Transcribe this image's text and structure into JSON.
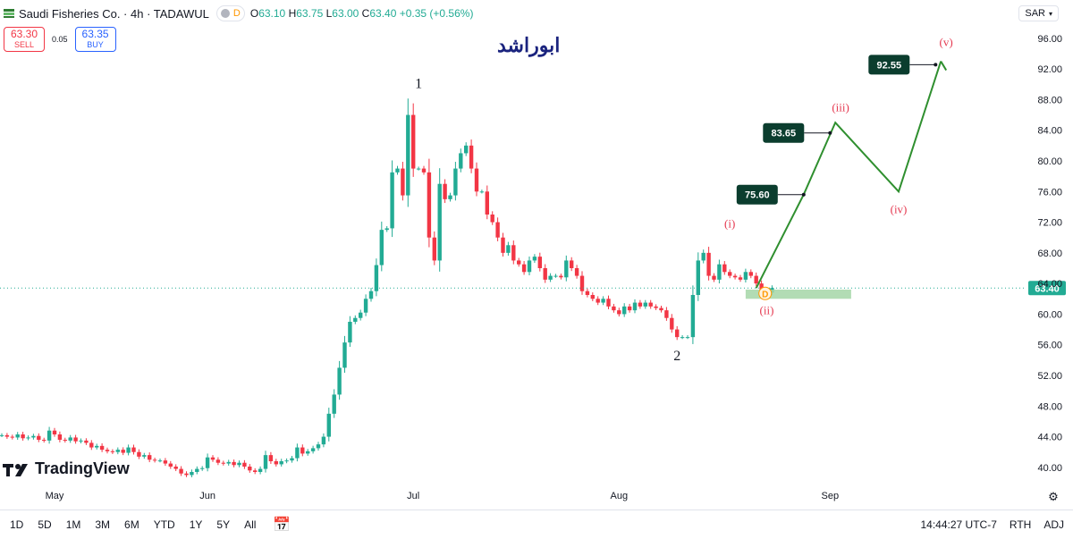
{
  "header": {
    "symbol": "Saudi Fisheries Co. · 4h · TADAWUL",
    "d_label": "D",
    "open_label": "O",
    "open": "63.10",
    "high_label": "H",
    "high": "63.75",
    "low_label": "L",
    "low": "63.00",
    "close_label": "C",
    "close": "63.40",
    "change": "+0.35 (+0.56%)"
  },
  "trade": {
    "sell_price": "63.30",
    "sell_label": "SELL",
    "spread": "0.05",
    "buy_price": "63.35",
    "buy_label": "BUY"
  },
  "currency": "SAR",
  "annotation_title": "ابوراشد",
  "brand": "TradingView",
  "bottom_bar": {
    "timeframes": [
      "1D",
      "5D",
      "1M",
      "3M",
      "6M",
      "YTD",
      "1Y",
      "5Y",
      "All"
    ],
    "time": "14:44:27 UTC-7",
    "session": "RTH",
    "adj": "ADJ"
  },
  "colors": {
    "up": "#22ab94",
    "down": "#f23645",
    "wave": "#2f8f2f",
    "label_bg": "#0b3d2e",
    "target_zone": "#a5d6a7"
  },
  "chart_data": {
    "type": "candlestick",
    "y_axis": {
      "min": 38,
      "max": 97.5,
      "ticks": [
        40,
        44,
        48,
        52,
        56,
        60,
        64,
        68,
        72,
        76,
        80,
        84,
        88,
        92,
        96
      ],
      "labels": [
        "40.00",
        "44.00",
        "48.00",
        "52.00",
        "56.00",
        "60.00",
        "64.00",
        "68.00",
        "72.00",
        "76.00",
        "80.00",
        "84.00",
        "88.00",
        "92.00",
        "96.00"
      ]
    },
    "x_axis": {
      "ticks": [
        {
          "label": "May",
          "i": 10
        },
        {
          "label": "Jun",
          "i": 39
        },
        {
          "label": "Jul",
          "i": 78
        },
        {
          "label": "Aug",
          "i": 117
        },
        {
          "label": "Sep",
          "i": 157
        }
      ]
    },
    "last_price": {
      "value": 63.4,
      "label": "63.40"
    },
    "closes": [
      44.2,
      44.0,
      43.9,
      44.3,
      43.8,
      43.9,
      44.1,
      43.6,
      43.5,
      44.8,
      44.3,
      43.6,
      43.5,
      43.9,
      43.4,
      43.5,
      43.2,
      42.6,
      42.8,
      42.3,
      42.1,
      42.0,
      42.3,
      41.9,
      42.6,
      42.0,
      41.4,
      41.6,
      41.0,
      40.9,
      40.9,
      40.5,
      40.1,
      39.8,
      39.2,
      39.0,
      39.4,
      39.8,
      39.9,
      41.3,
      41.0,
      40.6,
      40.5,
      40.7,
      40.3,
      40.6,
      40.1,
      39.6,
      39.4,
      39.8,
      41.6,
      40.8,
      40.4,
      40.8,
      40.9,
      41.2,
      42.6,
      41.8,
      42.1,
      42.5,
      43.0,
      44.0,
      47.0,
      49.5,
      53.0,
      56.3,
      59.0,
      59.5,
      60.2,
      62.0,
      63.0,
      66.4,
      71.0,
      71.2,
      78.5,
      79.0,
      75.5,
      86.0,
      79.0,
      79.0,
      78.5,
      70.0,
      67.0,
      77.0,
      75.0,
      75.5,
      79.0,
      81.0,
      82.0,
      79.0,
      76.0,
      76.0,
      73.0,
      72.0,
      70.0,
      68.0,
      69.0,
      67.0,
      66.5,
      65.5,
      67.0,
      67.5,
      66.0,
      64.5,
      65.0,
      65.0,
      64.8,
      67.0,
      66.0,
      65.0,
      63.0,
      62.5,
      62.0,
      61.5,
      62.0,
      61.0,
      60.5,
      60.0,
      61.0,
      60.5,
      61.5,
      61.0,
      61.5,
      61.0,
      60.8,
      60.5,
      59.5,
      58.0,
      57.0,
      57.0,
      57.0,
      62.5,
      67.0,
      68.0,
      65.0,
      64.5,
      66.5,
      65.5,
      65.0,
      64.8,
      64.5,
      65.5,
      65.0,
      64.0,
      63.2,
      62.8,
      63.4
    ],
    "wave_path": [
      {
        "i": 143,
        "v": 63.4
      },
      {
        "i": 152,
        "v": 75.6
      },
      {
        "i": 158,
        "v": 85.0
      },
      {
        "i": 170,
        "v": 76.0
      },
      {
        "i": 178,
        "v": 93.0
      }
    ],
    "markers": [
      {
        "text": "1",
        "i": 79,
        "v": 89.5,
        "style": "count"
      },
      {
        "text": "2",
        "i": 128,
        "v": 54.0,
        "style": "count"
      },
      {
        "text": "(i)",
        "i": 138,
        "v": 71.3,
        "style": "wave"
      },
      {
        "text": "(ii)",
        "i": 145,
        "v": 60.0,
        "style": "wave"
      },
      {
        "text": "(iii)",
        "i": 159,
        "v": 86.5,
        "style": "wave"
      },
      {
        "text": "(iv)",
        "i": 170,
        "v": 73.2,
        "style": "wave"
      },
      {
        "text": "(v)",
        "i": 179,
        "v": 95.0,
        "style": "wave"
      }
    ],
    "targets": [
      {
        "label": "75.60",
        "value": 75.6,
        "i": 152
      },
      {
        "label": "83.65",
        "value": 83.65,
        "i": 157
      },
      {
        "label": "92.55",
        "value": 92.55,
        "i": 177
      }
    ],
    "target_zone": {
      "from_i": 141,
      "to_i": 161,
      "low": 62.0,
      "high": 63.2
    },
    "event_label": "D"
  }
}
